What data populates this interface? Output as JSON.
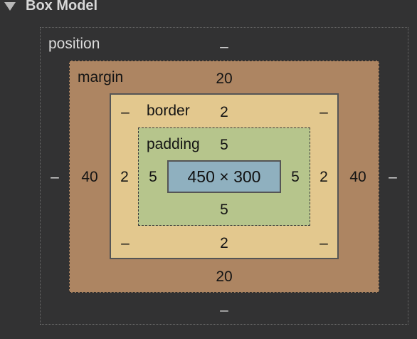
{
  "header": {
    "title": "Box Model"
  },
  "position": {
    "label": "position",
    "top": "–",
    "right": "–",
    "bottom": "–",
    "left": "–"
  },
  "margin": {
    "label": "margin",
    "top": "20",
    "right": "40",
    "bottom": "20",
    "left": "40"
  },
  "border": {
    "label": "border",
    "top": "2",
    "right": "2",
    "bottom": "2",
    "left": "2",
    "corner_tl": "–",
    "corner_tr": "–",
    "corner_bl": "–",
    "corner_br": "–"
  },
  "padding": {
    "label": "padding",
    "top": "5",
    "right": "5",
    "bottom": "5",
    "left": "5"
  },
  "content": {
    "size": "450 × 300"
  },
  "colors": {
    "background": "#323233",
    "margin": "#ad8562",
    "border": "#e3c88e",
    "padding": "#b6c58c",
    "content": "#8fb0bf"
  }
}
